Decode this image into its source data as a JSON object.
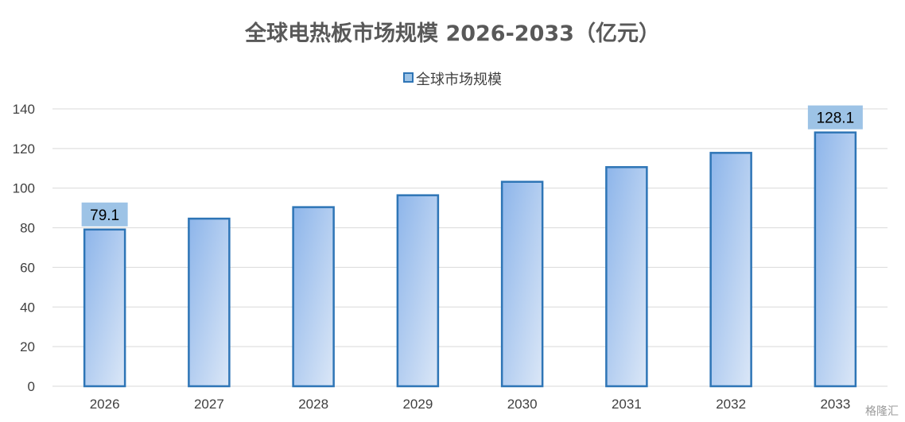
{
  "chart_data": {
    "type": "bar",
    "title": "全球电热板市场规模 2026-2033（亿元）",
    "categories": [
      "2026",
      "2027",
      "2028",
      "2029",
      "2030",
      "2031",
      "2032",
      "2033"
    ],
    "series": [
      {
        "name": "全球市场规模",
        "values": [
          79.1,
          84.6,
          90.4,
          96.4,
          103.2,
          110.6,
          117.8,
          128.1
        ]
      }
    ],
    "data_labels": [
      {
        "category": "2026",
        "text": "79.1"
      },
      {
        "category": "2033",
        "text": "128.1"
      }
    ],
    "ylim": [
      0,
      140
    ],
    "yticks": [
      0,
      20,
      40,
      60,
      80,
      100,
      120,
      140
    ],
    "grid": true,
    "legend_position": "top",
    "colors": {
      "bar_edge": "#2e75b6",
      "bar_fill_light": "#dbe7f7",
      "bar_fill_dark": "#8db5ea",
      "label_box": "#9dc3e6",
      "grid": "#d9d9d9"
    }
  },
  "watermark": "格隆汇"
}
